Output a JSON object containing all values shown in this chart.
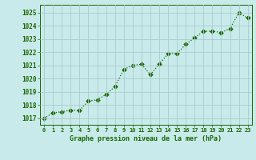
{
  "x": [
    0,
    1,
    2,
    3,
    4,
    5,
    6,
    7,
    8,
    9,
    10,
    11,
    12,
    13,
    14,
    15,
    16,
    17,
    18,
    19,
    20,
    21,
    22,
    23
  ],
  "y": [
    1017.0,
    1017.4,
    1017.5,
    1017.6,
    1017.6,
    1018.3,
    1018.4,
    1018.8,
    1019.4,
    1020.7,
    1021.0,
    1021.1,
    1020.3,
    1021.1,
    1021.9,
    1021.9,
    1022.6,
    1023.1,
    1023.6,
    1023.6,
    1023.5,
    1023.8,
    1025.0,
    1024.6
  ],
  "line_color": "#1a6600",
  "marker_color": "#1a6600",
  "bg_color": "#c8eaea",
  "grid_color": "#aacccc",
  "xlabel": "Graphe pression niveau de la mer (hPa)",
  "xlabel_color": "#1a6600",
  "tick_color": "#1a6600",
  "ylim": [
    1016.5,
    1025.6
  ],
  "yticks": [
    1017,
    1018,
    1019,
    1020,
    1021,
    1022,
    1023,
    1024,
    1025
  ],
  "xlim": [
    -0.5,
    23.5
  ],
  "xticks": [
    0,
    1,
    2,
    3,
    4,
    5,
    6,
    7,
    8,
    9,
    10,
    11,
    12,
    13,
    14,
    15,
    16,
    17,
    18,
    19,
    20,
    21,
    22,
    23
  ],
  "figwidth": 3.2,
  "figheight": 2.0,
  "dpi": 100
}
